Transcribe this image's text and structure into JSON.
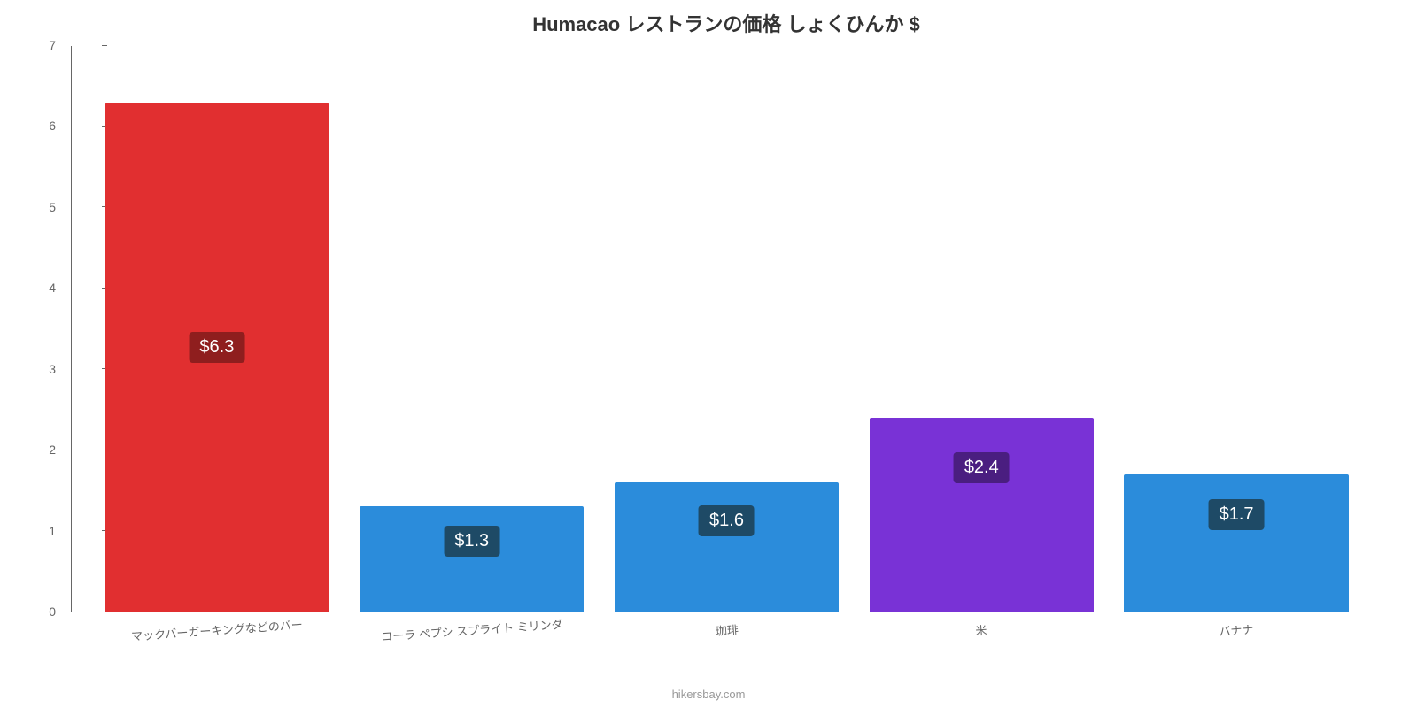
{
  "chart": {
    "type": "bar",
    "title": "Humacao レストランの価格 しょくひんか $",
    "title_fontsize": 22,
    "title_color": "#333333",
    "background_color": "#ffffff",
    "axis_color": "#666666",
    "label_color": "#666666",
    "label_fontsize": 14,
    "ylim": [
      0,
      7
    ],
    "ytick_step": 1,
    "yticks": [
      0,
      1,
      2,
      3,
      4,
      5,
      6,
      7
    ],
    "bar_width": 0.88,
    "categories": [
      "マックバーガーキングなどのバー",
      "コーラ ペプシ スプライト ミリンダ",
      "珈琲",
      "米",
      "バナナ"
    ],
    "values": [
      6.3,
      1.3,
      1.6,
      2.4,
      1.7
    ],
    "value_labels": [
      "$6.3",
      "$1.3",
      "$1.6",
      "$2.4",
      "$1.7"
    ],
    "bar_colors": [
      "#e12f30",
      "#2b8cdb",
      "#2b8cdb",
      "#7932d6",
      "#2b8cdb"
    ],
    "label_bg_colors": [
      "#8f1e1e",
      "#1e4a66",
      "#1e4a66",
      "#4a1e80",
      "#1e4a66"
    ],
    "value_label_fontsize": 20,
    "value_label_color": "#ffffff",
    "attribution": "hikersbay.com",
    "attribution_color": "#999999",
    "x_label_rotation": -4,
    "x_label_fontsize": 13
  }
}
